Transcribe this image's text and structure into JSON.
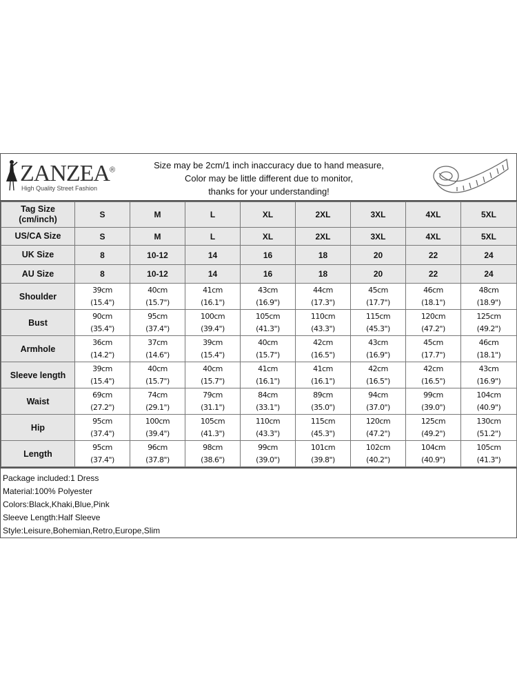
{
  "header": {
    "brand": "ZANZEA",
    "brand_mark": "®",
    "tagline": "High Quality Street Fashion",
    "notice": [
      "Size may be 2cm/1 inch inaccuracy due to hand measure,",
      "Color may be little different due to monitor,",
      "thanks for your understanding!"
    ],
    "icons": [
      "dress-figure-icon",
      "measuring-tape-icon"
    ]
  },
  "size_rows": [
    {
      "label": "Tag Size (cm/inch)",
      "values": [
        "S",
        "M",
        "L",
        "XL",
        "2XL",
        "3XL",
        "4XL",
        "5XL"
      ]
    },
    {
      "label": "US/CA Size",
      "values": [
        "S",
        "M",
        "L",
        "XL",
        "2XL",
        "3XL",
        "4XL",
        "5XL"
      ]
    },
    {
      "label": "UK Size",
      "values": [
        "8",
        "10-12",
        "14",
        "16",
        "18",
        "20",
        "22",
        "24"
      ]
    },
    {
      "label": "AU Size",
      "values": [
        "8",
        "10-12",
        "14",
        "16",
        "18",
        "20",
        "22",
        "24"
      ]
    }
  ],
  "measure_rows": [
    {
      "label": "Shoulder",
      "cm": [
        "39cm",
        "40cm",
        "41cm",
        "43cm",
        "44cm",
        "45cm",
        "46cm",
        "48cm"
      ],
      "inch": [
        "(15.4\")",
        "(15.7\")",
        "(16.1\")",
        "(16.9\")",
        "(17.3\")",
        "(17.7\")",
        "(18.1\")",
        "(18.9\")"
      ]
    },
    {
      "label": "Bust",
      "cm": [
        "90cm",
        "95cm",
        "100cm",
        "105cm",
        "110cm",
        "115cm",
        "120cm",
        "125cm"
      ],
      "inch": [
        "(35.4\")",
        "(37.4\")",
        "(39.4\")",
        "(41.3\")",
        "(43.3\")",
        "(45.3\")",
        "(47.2\")",
        "(49.2\")"
      ]
    },
    {
      "label": "Armhole",
      "cm": [
        "36cm",
        "37cm",
        "39cm",
        "40cm",
        "42cm",
        "43cm",
        "45cm",
        "46cm"
      ],
      "inch": [
        "(14.2\")",
        "(14.6\")",
        "(15.4\")",
        "(15.7\")",
        "(16.5\")",
        "(16.9\")",
        "(17.7\")",
        "(18.1\")"
      ]
    },
    {
      "label": "Sleeve length",
      "cm": [
        "39cm",
        "40cm",
        "40cm",
        "41cm",
        "41cm",
        "42cm",
        "42cm",
        "43cm"
      ],
      "inch": [
        "(15.4\")",
        "(15.7\")",
        "(15.7\")",
        "(16.1\")",
        "(16.1\")",
        "(16.5\")",
        "(16.5\")",
        "(16.9\")"
      ]
    },
    {
      "label": "Waist",
      "cm": [
        "69cm",
        "74cm",
        "79cm",
        "84cm",
        "89cm",
        "94cm",
        "99cm",
        "104cm"
      ],
      "inch": [
        "(27.2\")",
        "(29.1\")",
        "(31.1\")",
        "(33.1\")",
        "(35.0\")",
        "(37.0\")",
        "(39.0\")",
        "(40.9\")"
      ]
    },
    {
      "label": "Hip",
      "cm": [
        "95cm",
        "100cm",
        "105cm",
        "110cm",
        "115cm",
        "120cm",
        "125cm",
        "130cm"
      ],
      "inch": [
        "(37.4\")",
        "(39.4\")",
        "(41.3\")",
        "(43.3\")",
        "(45.3\")",
        "(47.2\")",
        "(49.2\")",
        "(51.2\")"
      ]
    },
    {
      "label": "Length",
      "cm": [
        "95cm",
        "96cm",
        "98cm",
        "99cm",
        "101cm",
        "102cm",
        "104cm",
        "105cm"
      ],
      "inch": [
        "(37.4\")",
        "(37.8\")",
        "(38.6\")",
        "(39.0\")",
        "(39.8\")",
        "(40.2\")",
        "(40.9\")",
        "(41.3\")"
      ]
    }
  ],
  "info": [
    "Package included:1 Dress",
    "Material:100% Polyester",
    "Colors:Black,Khaki,Blue,Pink",
    "Sleeve Length:Half Sleeve",
    "Style:Leisure,Bohemian,Retro,Europe,Slim"
  ]
}
